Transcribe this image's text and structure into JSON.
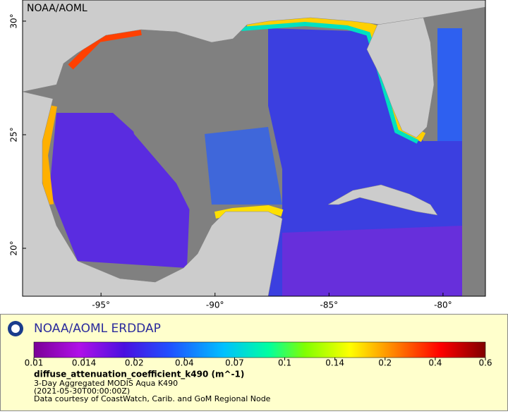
{
  "map": {
    "watermark": "NOAA/AOML",
    "lon_range": [
      -98.44,
      -78.14
    ],
    "lat_range": [
      17.89,
      30.93
    ],
    "lon_ticks": [
      {
        "value": -95,
        "label": "-95°"
      },
      {
        "value": -90,
        "label": "-90°"
      },
      {
        "value": -85,
        "label": "-85°"
      },
      {
        "value": -80,
        "label": "-80°"
      }
    ],
    "lat_ticks": [
      {
        "value": 20,
        "label": "20°"
      },
      {
        "value": 25,
        "label": "25°"
      },
      {
        "value": 30,
        "label": "30°"
      }
    ]
  },
  "legend": {
    "title": "NOAA/AOML ERDDAP",
    "colorbar_ticks": [
      0.01,
      0.014,
      0.02,
      0.04,
      0.07,
      0.1,
      0.14,
      0.2,
      0.4,
      0.6
    ],
    "variable": "diffuse_attenuation_coefficient_k490 (m^-1)",
    "lines": [
      "3-Day Aggregated MODIS Aqua K490",
      "(2021-05-30T00:00:00Z)",
      "Data courtesy of CoastWatch, Carib. and GoM Regional Node"
    ]
  }
}
